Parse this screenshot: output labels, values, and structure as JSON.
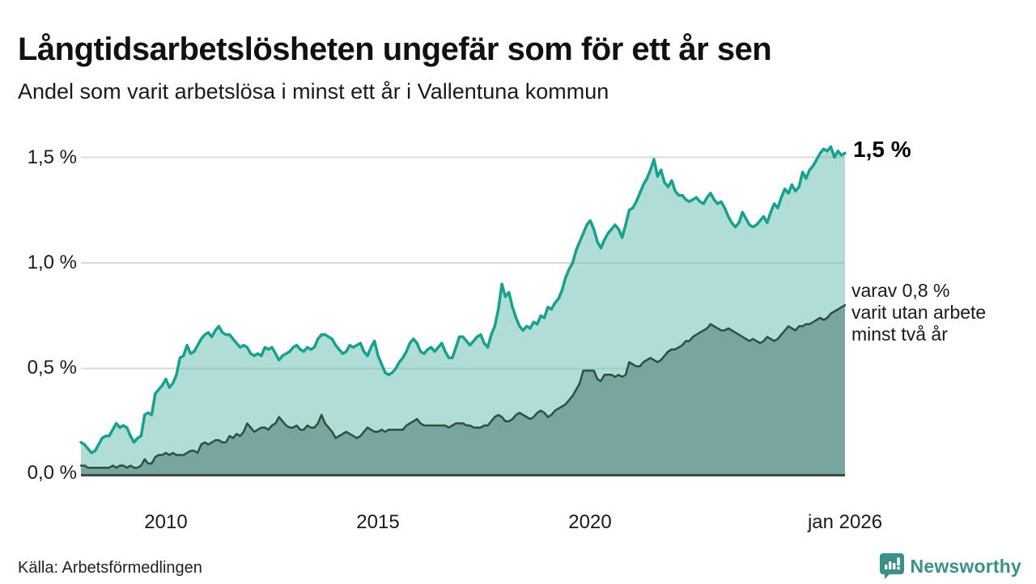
{
  "header": {
    "title": "Långtidsarbetslösheten ungefär som för ett år sen",
    "subtitle": "Andel som varit arbetslösa i minst ett år i Vallentuna kommun"
  },
  "chart": {
    "y_axis": {
      "labels": [
        "1,5 %",
        "1,0 %",
        "0,5 %",
        "0,0 %"
      ],
      "values": [
        1.5,
        1.0,
        0.5,
        0.0
      ]
    },
    "x_axis": {
      "ticks": [
        {
          "label": "2010",
          "year": 2010
        },
        {
          "label": "2015",
          "year": 2015
        },
        {
          "label": "2020",
          "year": 2020
        },
        {
          "label": "jan 2026",
          "year": 2026
        }
      ]
    },
    "annotations": {
      "end_value": "1,5 %",
      "secondary_lines": [
        "varav 0,8 %",
        "varit utan arbete",
        "minst två år"
      ]
    },
    "colors": {
      "line_primary": "#19a08e",
      "fill_primary": "rgba(103,191,178,0.52)",
      "line_secondary": "#2f4d48",
      "fill_secondary": "#78a59d",
      "gridline": "#d9d9d9",
      "axis": "#3c4946"
    }
  },
  "chart_data": {
    "type": "area",
    "title": "Andel som varit arbetslösa i minst ett år i Vallentuna kommun",
    "x_start_year": 2008,
    "x_end_year": 2026,
    "step_months": 1,
    "unit": "%",
    "ylim": [
      0,
      1.6
    ],
    "legend_position": "inline-annotations",
    "grid": true,
    "series": [
      {
        "name": "Andel arbetslösa minst ett år",
        "end_label": "1,5 %",
        "values": [
          0.15,
          0.14,
          0.12,
          0.1,
          0.11,
          0.14,
          0.17,
          0.18,
          0.18,
          0.21,
          0.24,
          0.22,
          0.23,
          0.22,
          0.18,
          0.15,
          0.17,
          0.18,
          0.28,
          0.29,
          0.28,
          0.38,
          0.4,
          0.42,
          0.45,
          0.41,
          0.43,
          0.47,
          0.55,
          0.56,
          0.61,
          0.57,
          0.58,
          0.61,
          0.64,
          0.66,
          0.67,
          0.65,
          0.68,
          0.7,
          0.67,
          0.66,
          0.66,
          0.64,
          0.62,
          0.6,
          0.61,
          0.6,
          0.57,
          0.56,
          0.57,
          0.56,
          0.6,
          0.59,
          0.6,
          0.57,
          0.54,
          0.56,
          0.57,
          0.58,
          0.6,
          0.61,
          0.59,
          0.58,
          0.6,
          0.59,
          0.6,
          0.64,
          0.66,
          0.66,
          0.65,
          0.64,
          0.61,
          0.59,
          0.57,
          0.58,
          0.61,
          0.6,
          0.61,
          0.62,
          0.58,
          0.56,
          0.6,
          0.63,
          0.56,
          0.52,
          0.48,
          0.47,
          0.48,
          0.5,
          0.53,
          0.55,
          0.58,
          0.62,
          0.64,
          0.62,
          0.58,
          0.57,
          0.59,
          0.6,
          0.58,
          0.6,
          0.62,
          0.58,
          0.55,
          0.55,
          0.6,
          0.65,
          0.65,
          0.63,
          0.61,
          0.63,
          0.65,
          0.66,
          0.62,
          0.6,
          0.66,
          0.7,
          0.78,
          0.9,
          0.84,
          0.86,
          0.79,
          0.74,
          0.7,
          0.68,
          0.7,
          0.69,
          0.72,
          0.71,
          0.75,
          0.74,
          0.79,
          0.78,
          0.81,
          0.83,
          0.87,
          0.93,
          0.97,
          1.0,
          1.06,
          1.1,
          1.14,
          1.18,
          1.2,
          1.16,
          1.1,
          1.07,
          1.11,
          1.14,
          1.16,
          1.18,
          1.16,
          1.12,
          1.18,
          1.25,
          1.26,
          1.29,
          1.33,
          1.37,
          1.4,
          1.44,
          1.49,
          1.41,
          1.44,
          1.38,
          1.36,
          1.39,
          1.34,
          1.32,
          1.32,
          1.3,
          1.29,
          1.3,
          1.31,
          1.29,
          1.28,
          1.31,
          1.33,
          1.3,
          1.28,
          1.29,
          1.26,
          1.22,
          1.19,
          1.17,
          1.19,
          1.24,
          1.21,
          1.18,
          1.17,
          1.18,
          1.2,
          1.22,
          1.19,
          1.24,
          1.28,
          1.26,
          1.31,
          1.35,
          1.33,
          1.37,
          1.34,
          1.36,
          1.43,
          1.4,
          1.44,
          1.46,
          1.49,
          1.52,
          1.54,
          1.53,
          1.55,
          1.5,
          1.53,
          1.51,
          1.52
        ]
      },
      {
        "name": "varav utan arbete minst två år",
        "end_label": "varav 0,8 % varit utan arbete minst två år",
        "values": [
          0.04,
          0.04,
          0.03,
          0.03,
          0.03,
          0.03,
          0.03,
          0.03,
          0.03,
          0.04,
          0.03,
          0.04,
          0.04,
          0.03,
          0.04,
          0.03,
          0.03,
          0.04,
          0.07,
          0.05,
          0.05,
          0.08,
          0.09,
          0.09,
          0.1,
          0.09,
          0.1,
          0.09,
          0.09,
          0.09,
          0.1,
          0.11,
          0.11,
          0.1,
          0.14,
          0.15,
          0.14,
          0.15,
          0.16,
          0.16,
          0.15,
          0.15,
          0.18,
          0.17,
          0.19,
          0.18,
          0.2,
          0.24,
          0.22,
          0.2,
          0.21,
          0.22,
          0.22,
          0.21,
          0.23,
          0.24,
          0.27,
          0.25,
          0.23,
          0.22,
          0.22,
          0.23,
          0.21,
          0.21,
          0.23,
          0.22,
          0.22,
          0.24,
          0.28,
          0.24,
          0.22,
          0.2,
          0.17,
          0.18,
          0.19,
          0.2,
          0.19,
          0.18,
          0.17,
          0.18,
          0.2,
          0.22,
          0.21,
          0.2,
          0.2,
          0.21,
          0.2,
          0.21,
          0.21,
          0.21,
          0.21,
          0.21,
          0.23,
          0.24,
          0.25,
          0.26,
          0.24,
          0.23,
          0.23,
          0.23,
          0.23,
          0.23,
          0.23,
          0.23,
          0.22,
          0.23,
          0.24,
          0.24,
          0.24,
          0.23,
          0.23,
          0.22,
          0.22,
          0.22,
          0.23,
          0.23,
          0.25,
          0.27,
          0.28,
          0.27,
          0.25,
          0.25,
          0.26,
          0.28,
          0.29,
          0.28,
          0.27,
          0.26,
          0.27,
          0.29,
          0.3,
          0.29,
          0.27,
          0.28,
          0.3,
          0.31,
          0.32,
          0.33,
          0.35,
          0.37,
          0.4,
          0.43,
          0.49,
          0.49,
          0.49,
          0.49,
          0.45,
          0.44,
          0.47,
          0.47,
          0.47,
          0.46,
          0.47,
          0.46,
          0.47,
          0.53,
          0.52,
          0.51,
          0.51,
          0.53,
          0.54,
          0.55,
          0.54,
          0.53,
          0.54,
          0.56,
          0.58,
          0.59,
          0.59,
          0.6,
          0.61,
          0.63,
          0.63,
          0.65,
          0.66,
          0.67,
          0.68,
          0.69,
          0.71,
          0.7,
          0.69,
          0.68,
          0.68,
          0.69,
          0.68,
          0.67,
          0.66,
          0.65,
          0.64,
          0.63,
          0.64,
          0.63,
          0.62,
          0.63,
          0.65,
          0.64,
          0.63,
          0.64,
          0.66,
          0.68,
          0.7,
          0.69,
          0.68,
          0.7,
          0.7,
          0.71,
          0.71,
          0.72,
          0.73,
          0.74,
          0.73,
          0.74,
          0.76,
          0.77,
          0.78,
          0.79,
          0.8
        ]
      }
    ]
  },
  "footer": {
    "source": "Källa: Arbetsförmedlingen",
    "brand": "Newsworthy"
  }
}
